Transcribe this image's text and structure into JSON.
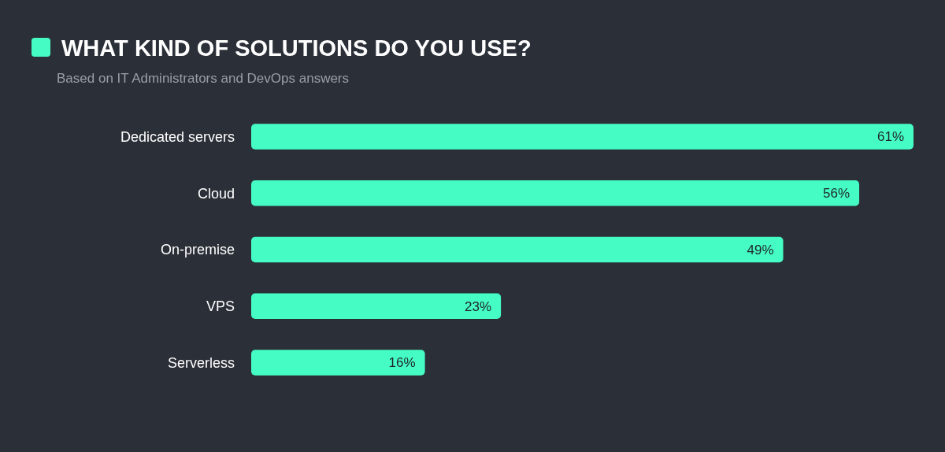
{
  "chart_data": {
    "type": "bar",
    "orientation": "horizontal",
    "title": "WHAT KIND OF SOLUTIONS DO YOU USE?",
    "subtitle": "Based on IT Administrators and DevOps answers",
    "categories": [
      "Dedicated servers",
      "Cloud",
      "On-premise",
      "VPS",
      "Serverless"
    ],
    "values": [
      61,
      56,
      49,
      23,
      16
    ],
    "value_labels": [
      "61%",
      "56%",
      "49%",
      "23%",
      "16%"
    ],
    "color": "#45fdc4"
  }
}
